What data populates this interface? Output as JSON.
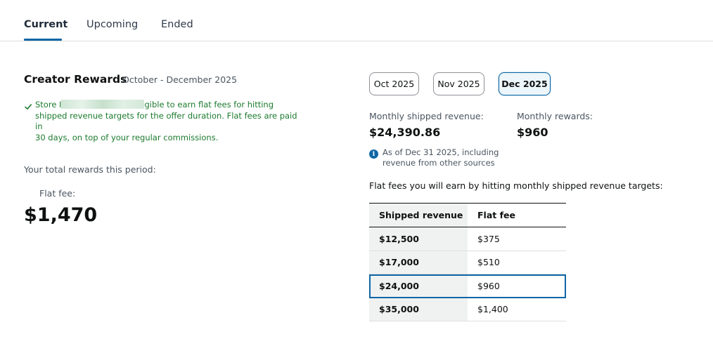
{
  "tabs": [
    {
      "label": "Current",
      "active": true
    },
    {
      "label": "Upcoming",
      "active": false
    },
    {
      "label": "Ended",
      "active": false
    }
  ],
  "program": {
    "title": "Creator Rewards",
    "period": "October - December 2025",
    "notice_prefix": "Store I",
    "notice_suffix": "gible to earn flat fees for hitting",
    "notice_line2": "shipped revenue targets for the offer duration. Flat fees are paid in",
    "notice_line3": "30 days, on top of your regular commissions.",
    "total_label": "Your total rewards this period:",
    "flat_fee_label": "Flat fee:",
    "flat_fee_amount": "$1,470"
  },
  "months": [
    {
      "label": "Oct 2025",
      "selected": false
    },
    {
      "label": "Nov 2025",
      "selected": false
    },
    {
      "label": "Dec 2025",
      "selected": true
    }
  ],
  "monthly": {
    "revenue_label": "Monthly shipped revenue:",
    "revenue_value": "$24,390.86",
    "rewards_label": "Monthly rewards:",
    "rewards_value": "$960",
    "info_line1": "As of Dec 31 2025, including",
    "info_line2": "revenue from other sources"
  },
  "targets": {
    "caption": "Flat fees you will earn by hitting monthly shipped revenue targets:",
    "headers": [
      "Shipped revenue",
      "Flat fee"
    ],
    "rows": [
      {
        "revenue": "$12,500",
        "fee": "$375"
      },
      {
        "revenue": "$17,000",
        "fee": "$510"
      },
      {
        "revenue": "$24,000",
        "fee": "$960"
      },
      {
        "revenue": "$35,000",
        "fee": "$1,400"
      }
    ],
    "highlighted_row": 2
  },
  "colors": {
    "accent": "#1066a5",
    "success": "#1c7a2e",
    "muted": "#4a5560"
  },
  "icons": {
    "notice": "checkmark-icon",
    "info": "info-icon"
  }
}
